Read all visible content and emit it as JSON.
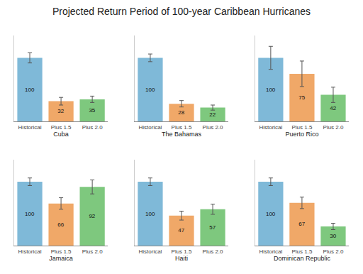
{
  "title": "Projected Return Period of 100-year Caribbean Hurricanes",
  "chart_data": [
    {
      "type": "bar",
      "xlabel": "Cuba",
      "categories": [
        "Historical",
        "Plus 1.5",
        "Plus 2.0"
      ],
      "values": [
        100,
        32,
        35
      ],
      "errors": [
        8,
        6,
        5
      ],
      "colors": [
        "#7fb9d8",
        "#f0a868",
        "#7ec87e"
      ],
      "ylim": [
        0,
        135
      ],
      "tick_labels": "x",
      "data_labels": true,
      "grid": false,
      "legend": "none"
    },
    {
      "type": "bar",
      "xlabel": "The Bahamas",
      "categories": [
        "Historical",
        "Plus 1.5",
        "Plus 2.0"
      ],
      "values": [
        100,
        28,
        22
      ],
      "errors": [
        6,
        5,
        4
      ],
      "colors": [
        "#7fb9d8",
        "#f0a868",
        "#7ec87e"
      ],
      "ylim": [
        0,
        135
      ],
      "tick_labels": "x",
      "data_labels": true,
      "grid": false,
      "legend": "none"
    },
    {
      "type": "bar",
      "xlabel": "Puerto Rico",
      "categories": [
        "Historical",
        "Plus 1.5",
        "Plus 2.0"
      ],
      "values": [
        100,
        75,
        42
      ],
      "errors": [
        18,
        20,
        12
      ],
      "colors": [
        "#7fb9d8",
        "#f0a868",
        "#7ec87e"
      ],
      "ylim": [
        0,
        135
      ],
      "tick_labels": "x",
      "data_labels": true,
      "grid": false,
      "legend": "none"
    },
    {
      "type": "bar",
      "xlabel": "Jamaica",
      "categories": [
        "Historical",
        "Plus 1.5",
        "Plus 2.0"
      ],
      "values": [
        100,
        66,
        92
      ],
      "errors": [
        6,
        9,
        11
      ],
      "colors": [
        "#7fb9d8",
        "#f0a868",
        "#7ec87e"
      ],
      "ylim": [
        0,
        135
      ],
      "tick_labels": "x",
      "data_labels": true,
      "grid": false,
      "legend": "none"
    },
    {
      "type": "bar",
      "xlabel": "Haiti",
      "categories": [
        "Historical",
        "Plus 1.5",
        "Plus 2.0"
      ],
      "values": [
        100,
        47,
        57
      ],
      "errors": [
        6,
        7,
        8
      ],
      "colors": [
        "#7fb9d8",
        "#f0a868",
        "#7ec87e"
      ],
      "ylim": [
        0,
        135
      ],
      "tick_labels": "x",
      "data_labels": true,
      "grid": false,
      "legend": "none"
    },
    {
      "type": "bar",
      "xlabel": "Dominican Republic",
      "categories": [
        "Historical",
        "Plus 1.5",
        "Plus 2.0"
      ],
      "values": [
        100,
        67,
        30
      ],
      "errors": [
        6,
        9,
        5
      ],
      "colors": [
        "#7fb9d8",
        "#f0a868",
        "#7ec87e"
      ],
      "ylim": [
        0,
        135
      ],
      "tick_labels": "x",
      "data_labels": true,
      "grid": false,
      "legend": "none"
    }
  ]
}
